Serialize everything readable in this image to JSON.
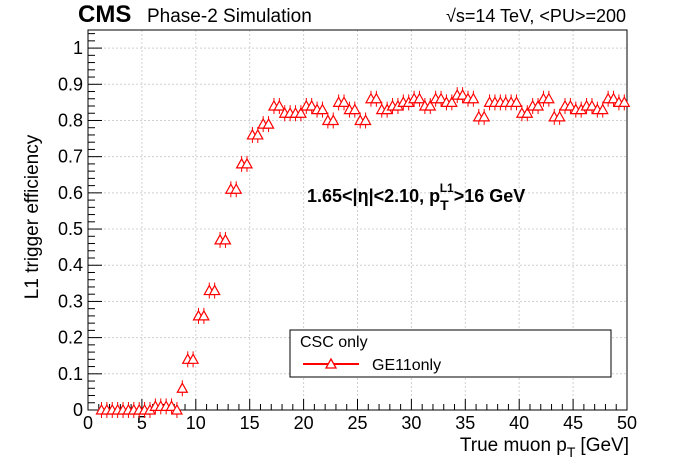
{
  "header": {
    "experiment": "CMS",
    "subtitle": "Phase-2 Simulation",
    "energy_info": "√s=14 TeV, <PU>=200"
  },
  "annotation": {
    "prefix": "1.65<|η|<2.10, p",
    "sub": "T",
    "sup": "L1",
    "suffix": ">16 GeV"
  },
  "legend": {
    "header": "CSC only",
    "entry": "GE11only"
  },
  "colors": {
    "series": "#ff0000",
    "grid": "#d0d0d0",
    "axis": "#000000"
  },
  "chart_data": {
    "type": "scatter",
    "marker": "open-triangle-with-error-bars",
    "xlabel": "True muon p",
    "xlabel_sub": "T",
    "xlabel_unit": "[GeV]",
    "ylabel": "L1 trigger efficiency",
    "xlim": [
      0,
      50
    ],
    "ylim": [
      0,
      1.05
    ],
    "grid": true,
    "legend_position": "bottom-right",
    "x_ticks": [
      0,
      5,
      10,
      15,
      20,
      25,
      30,
      35,
      40,
      45,
      50
    ],
    "x_tick_labels": [
      "0",
      "5",
      "10",
      "15",
      "20",
      "25",
      "30",
      "35",
      "40",
      "45",
      "50"
    ],
    "y_ticks": [
      0,
      0.1,
      0.2,
      0.3,
      0.4,
      0.5,
      0.6,
      0.7,
      0.8,
      0.9,
      1
    ],
    "y_tick_labels": [
      "0",
      "0.1",
      "0.2",
      "0.3",
      "0.4",
      "0.5",
      "0.6",
      "0.7",
      "0.8",
      "0.9",
      "1"
    ],
    "series": [
      {
        "name": "GE11only",
        "x": [
          1.25,
          1.75,
          2.25,
          2.75,
          3.25,
          3.75,
          4.25,
          4.75,
          5.25,
          5.75,
          6.25,
          6.75,
          7.25,
          7.75,
          8.25,
          8.75,
          9.25,
          9.75,
          10.25,
          10.75,
          11.25,
          11.75,
          12.25,
          12.75,
          13.25,
          13.75,
          14.25,
          14.75,
          15.25,
          15.75,
          16.25,
          16.75,
          17.25,
          17.75,
          18.25,
          18.75,
          19.25,
          19.75,
          20.25,
          20.75,
          21.25,
          21.75,
          22.25,
          22.75,
          23.25,
          23.75,
          24.25,
          24.75,
          25.25,
          25.75,
          26.25,
          26.75,
          27.25,
          27.75,
          28.25,
          28.75,
          29.25,
          29.75,
          30.25,
          30.75,
          31.25,
          31.75,
          32.25,
          32.75,
          33.25,
          33.75,
          34.25,
          34.75,
          35.25,
          35.75,
          36.25,
          36.75,
          37.25,
          37.75,
          38.25,
          38.75,
          39.25,
          39.75,
          40.25,
          40.75,
          41.25,
          41.75,
          42.25,
          42.75,
          43.25,
          43.75,
          44.25,
          44.75,
          45.25,
          45.75,
          46.25,
          46.75,
          47.25,
          47.75,
          48.25,
          48.75,
          49.25,
          49.75
        ],
        "y": [
          0.0,
          0.0,
          0.0,
          0.0,
          0.0,
          0.0,
          0.0,
          0.0,
          0.0,
          0.0,
          0.01,
          0.01,
          0.01,
          0.01,
          0.0,
          0.06,
          0.14,
          0.14,
          0.26,
          0.26,
          0.33,
          0.33,
          0.47,
          0.47,
          0.61,
          0.61,
          0.68,
          0.68,
          0.76,
          0.76,
          0.79,
          0.79,
          0.84,
          0.84,
          0.82,
          0.82,
          0.82,
          0.82,
          0.84,
          0.84,
          0.83,
          0.83,
          0.8,
          0.8,
          0.85,
          0.85,
          0.83,
          0.83,
          0.8,
          0.8,
          0.86,
          0.86,
          0.83,
          0.83,
          0.84,
          0.84,
          0.85,
          0.85,
          0.86,
          0.86,
          0.84,
          0.84,
          0.86,
          0.86,
          0.85,
          0.85,
          0.87,
          0.87,
          0.86,
          0.86,
          0.81,
          0.81,
          0.85,
          0.85,
          0.85,
          0.85,
          0.85,
          0.85,
          0.82,
          0.82,
          0.84,
          0.84,
          0.86,
          0.86,
          0.81,
          0.81,
          0.84,
          0.84,
          0.83,
          0.83,
          0.84,
          0.84,
          0.83,
          0.83,
          0.86,
          0.86,
          0.85,
          0.85
        ]
      }
    ]
  }
}
